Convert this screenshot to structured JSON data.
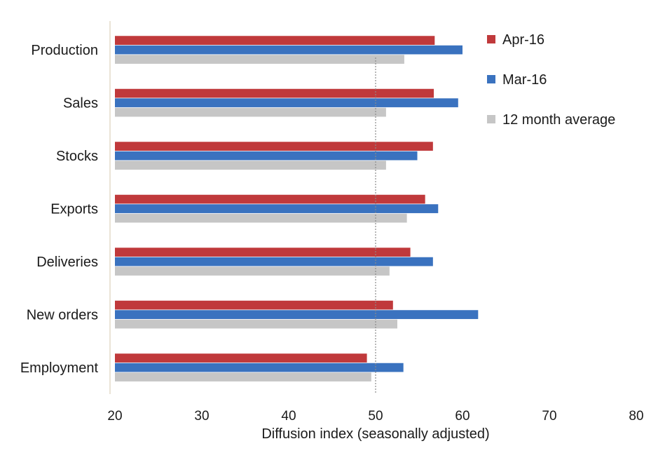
{
  "chart_data": {
    "type": "bar",
    "orientation": "horizontal",
    "categories": [
      "Production",
      "Sales",
      "Stocks",
      "Exports",
      "Deliveries",
      "New orders",
      "Employment"
    ],
    "series": [
      {
        "name": "Apr-16",
        "color": "#c0393b",
        "values": [
          56.8,
          56.7,
          56.6,
          55.7,
          54.0,
          52.0,
          49.0
        ]
      },
      {
        "name": "Mar-16",
        "color": "#3a72bf",
        "values": [
          60.0,
          59.5,
          54.8,
          57.2,
          56.6,
          61.8,
          53.2
        ]
      },
      {
        "name": "12 month average",
        "color": "#c6c6c6",
        "values": [
          53.3,
          51.2,
          51.2,
          53.6,
          51.6,
          52.5,
          49.5
        ]
      }
    ],
    "xlabel": "Diffusion index (seasonally adjusted)",
    "ylabel": "",
    "xlim": [
      20,
      80
    ],
    "xticks": [
      "20",
      "30",
      "40",
      "50",
      "60",
      "70",
      "80"
    ],
    "reference_line": 50,
    "legend_position": "top-right",
    "grid": false
  }
}
